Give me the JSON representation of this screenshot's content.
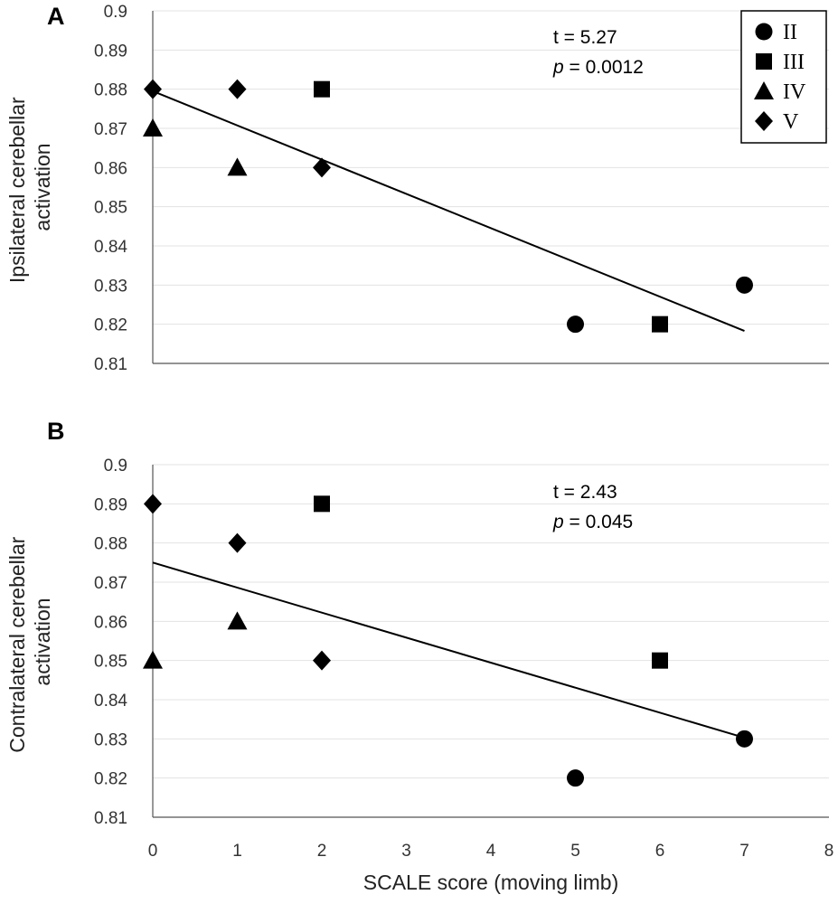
{
  "chart_data": [
    {
      "type": "scatter",
      "panel": "A",
      "ylabel": "Ipsilateral cerebellar activation",
      "ylim": [
        0.81,
        0.9
      ],
      "yticks": [
        "0.81",
        "0.82",
        "0.83",
        "0.84",
        "0.85",
        "0.86",
        "0.87",
        "0.88",
        "0.89",
        "0.9"
      ],
      "xlim": [
        0,
        8
      ],
      "stat_t": "t = 5.27",
      "stat_p_symbol": "p",
      "stat_p_value": " = 0.0012",
      "series": [
        {
          "name": "II",
          "marker": "circle",
          "points": [
            [
              5,
              0.82
            ],
            [
              7,
              0.83
            ]
          ]
        },
        {
          "name": "III",
          "marker": "square",
          "points": [
            [
              2,
              0.88
            ],
            [
              6,
              0.82
            ]
          ]
        },
        {
          "name": "IV",
          "marker": "triangle",
          "points": [
            [
              0,
              0.87
            ],
            [
              1,
              0.86
            ]
          ]
        },
        {
          "name": "V",
          "marker": "diamond",
          "points": [
            [
              0,
              0.88
            ],
            [
              1,
              0.88
            ],
            [
              2,
              0.86
            ]
          ]
        }
      ],
      "trendline": {
        "x": [
          0,
          7
        ],
        "y": [
          0.8795,
          0.8183
        ]
      }
    },
    {
      "type": "scatter",
      "panel": "B",
      "ylabel": "Contralateral cerebellar activation",
      "ylim": [
        0.81,
        0.9
      ],
      "yticks": [
        "0.81",
        "0.82",
        "0.83",
        "0.84",
        "0.85",
        "0.86",
        "0.87",
        "0.88",
        "0.89",
        "0.9"
      ],
      "xlim": [
        0,
        8
      ],
      "xticks": [
        "0",
        "1",
        "2",
        "3",
        "4",
        "5",
        "6",
        "7",
        "8"
      ],
      "xlabel": "SCALE score (moving limb)",
      "stat_t": "t = 2.43",
      "stat_p_symbol": "p",
      "stat_p_value": " = 0.045",
      "series": [
        {
          "name": "II",
          "marker": "circle",
          "points": [
            [
              5,
              0.82
            ],
            [
              7,
              0.83
            ]
          ]
        },
        {
          "name": "III",
          "marker": "square",
          "points": [
            [
              2,
              0.89
            ],
            [
              6,
              0.85
            ]
          ]
        },
        {
          "name": "IV",
          "marker": "triangle",
          "points": [
            [
              0,
              0.85
            ],
            [
              1,
              0.86
            ]
          ]
        },
        {
          "name": "V",
          "marker": "diamond",
          "points": [
            [
              0,
              0.89
            ],
            [
              1,
              0.88
            ],
            [
              2,
              0.85
            ]
          ]
        }
      ],
      "trendline": {
        "x": [
          0,
          7
        ],
        "y": [
          0.875,
          0.8303
        ]
      }
    }
  ],
  "legend": [
    {
      "label": "II",
      "marker": "circle"
    },
    {
      "label": "III",
      "marker": "square"
    },
    {
      "label": "IV",
      "marker": "triangle"
    },
    {
      "label": "V",
      "marker": "diamond"
    }
  ]
}
